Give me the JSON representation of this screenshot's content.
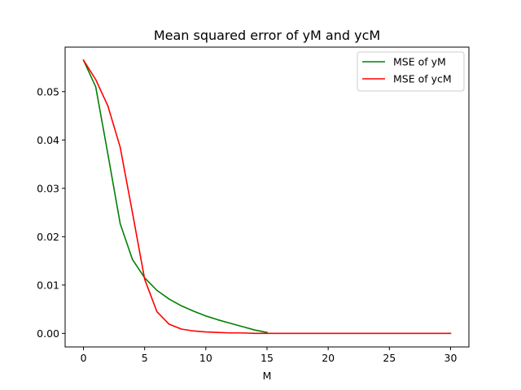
{
  "chart_data": {
    "type": "line",
    "title": "Mean squared error of yM and ycM",
    "xlabel": "M",
    "ylabel": "",
    "xlim": [
      -1.5,
      31.5
    ],
    "ylim": [
      -0.0028,
      0.0592
    ],
    "x_ticks": [
      0,
      5,
      10,
      15,
      20,
      25,
      30
    ],
    "x_tick_labels": [
      "0",
      "5",
      "10",
      "15",
      "20",
      "25",
      "30"
    ],
    "y_ticks": [
      0.0,
      0.01,
      0.02,
      0.03,
      0.04,
      0.05
    ],
    "y_tick_labels": [
      "0.00",
      "0.01",
      "0.02",
      "0.03",
      "0.04",
      "0.05"
    ],
    "grid": false,
    "legend_position": "top-right",
    "series": [
      {
        "name": "MSE of yM",
        "color": "#008000",
        "x": [
          0,
          1,
          2,
          3,
          4,
          5,
          6,
          7,
          8,
          9,
          10,
          11,
          12,
          13,
          14,
          15
        ],
        "values": [
          0.0565,
          0.051,
          0.037,
          0.0227,
          0.0153,
          0.0115,
          0.0089,
          0.0071,
          0.0057,
          0.0046,
          0.0036,
          0.0028,
          0.0021,
          0.0014,
          0.0007,
          0.0002
        ]
      },
      {
        "name": "MSE of ycM",
        "color": "#ff0000",
        "x": [
          0,
          1,
          2,
          3,
          4,
          5,
          6,
          7,
          8,
          9,
          10,
          11,
          12,
          13,
          14,
          15,
          16,
          17,
          18,
          19,
          20,
          21,
          22,
          23,
          24,
          25,
          26,
          27,
          28,
          29,
          30
        ],
        "values": [
          0.0565,
          0.0525,
          0.047,
          0.0385,
          0.025,
          0.0112,
          0.0045,
          0.0019,
          0.0009,
          0.0005,
          0.0003,
          0.0002,
          0.0001,
          0.0001,
          0.0,
          0.0,
          0.0,
          0.0,
          0.0,
          0.0,
          0.0,
          0.0,
          0.0,
          0.0,
          0.0,
          0.0,
          0.0,
          0.0,
          0.0,
          0.0,
          0.0
        ]
      }
    ]
  }
}
